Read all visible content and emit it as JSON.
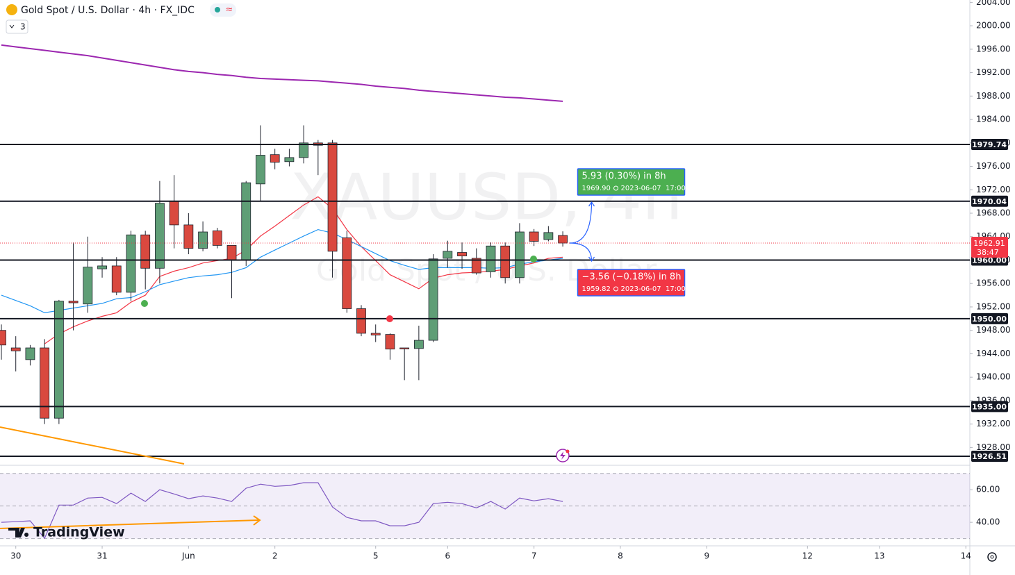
{
  "header": {
    "symbol": "Gold Spot / U.S. Dollar · 4h · FX_IDC",
    "badge": "3"
  },
  "branding": "TradingView",
  "chart_data": {
    "type": "candlestick",
    "watermark": "XAUUSD, 4h",
    "watermark_subtitle": "Gold Spot / U.S. Dollar",
    "categories": [
      null,
      "30",
      null,
      null,
      null,
      null,
      null,
      "31",
      null,
      null,
      null,
      null,
      null,
      "Jun",
      null,
      null,
      null,
      null,
      null,
      "2",
      null,
      null,
      null,
      null,
      null,
      null,
      "5",
      null,
      null,
      null,
      null,
      "6",
      null,
      null,
      null,
      null,
      null,
      "7",
      null,
      null,
      null,
      null,
      null,
      "8",
      null,
      null,
      null,
      null,
      null,
      "9",
      null,
      null,
      null,
      null,
      null,
      null,
      "12",
      null,
      null,
      null,
      null,
      "13",
      null,
      null,
      null,
      null,
      null,
      "14"
    ],
    "open": [
      1948,
      1945,
      1943,
      1945,
      1933,
      1953,
      1952.5,
      1958.5,
      1959,
      1954.5,
      1964.3,
      1958.6,
      1970,
      1966,
      1962,
      1965,
      1962.5,
      1960,
      1973,
      1978,
      1976.8,
      1977.5,
      1980,
      1980,
      1963.8,
      1951.7,
      1947.5,
      1947.3,
      1945,
      1944.9,
      1946.3,
      1960.3,
      1961.3,
      1960.3,
      1958,
      1962.4,
      1957,
      1964.8,
      1963.5,
      1964.2,
      null,
      null,
      null,
      null,
      null,
      null,
      null,
      null,
      null,
      null,
      null,
      null,
      null,
      null,
      null,
      null,
      null,
      null,
      null,
      null,
      null,
      null,
      null,
      null,
      null,
      null,
      null,
      null
    ],
    "high": [
      1949,
      1947,
      1945.5,
      1946.5,
      1953.2,
      1963,
      1964,
      1960.5,
      1960.5,
      1965,
      1965,
      1973.5,
      1974.5,
      1968,
      1966.6,
      1965.5,
      1962.5,
      1973.5,
      1983,
      1979,
      1979,
      1983,
      1980.5,
      1980.5,
      1965,
      1952.3,
      1949,
      1947.5,
      1945,
      1948.8,
      1961,
      1963.3,
      1963,
      1962,
      1963,
      1963,
      1966.3,
      1965.3,
      1965.8,
      1964.9,
      null,
      null,
      null,
      null,
      null,
      null,
      null,
      null,
      null,
      null,
      null,
      null,
      null,
      null,
      null,
      null,
      null,
      null,
      null,
      null,
      null,
      null,
      null,
      null,
      null,
      null,
      null,
      null
    ],
    "low": [
      1943,
      1941,
      1942,
      1932,
      1932,
      1948,
      1951,
      1957,
      1954,
      1953,
      1955,
      1956,
      1962,
      1961,
      1961.5,
      1962,
      1953.5,
      1959,
      1970,
      1975.5,
      1976,
      1976.5,
      1974.5,
      1957,
      1951,
      1947,
      1946,
      1943,
      1939.5,
      1939.5,
      1946,
      1958.7,
      1958.5,
      1957.5,
      1957,
      1956,
      1956,
      1962.4,
      1963.2,
      1962.3,
      null,
      null,
      null,
      null,
      null,
      null,
      null,
      null,
      null,
      null,
      null,
      null,
      null,
      null,
      null,
      null,
      null,
      null,
      null,
      null,
      null,
      null,
      null,
      null,
      null,
      null,
      null,
      null
    ],
    "close": [
      1945.5,
      1944.5,
      1945,
      1933,
      1953,
      1952.7,
      1958.8,
      1959,
      1954.5,
      1964.3,
      1958.6,
      1969.7,
      1966,
      1962,
      1964.8,
      1962.5,
      1960,
      1973.2,
      1977.9,
      1976.7,
      1977.5,
      1980,
      1979.6,
      1961.5,
      1951.7,
      1947.5,
      1947.2,
      1944.8,
      1944.9,
      1946.3,
      1960.2,
      1961.5,
      1960.7,
      1957.8,
      1962.4,
      1957,
      1964.8,
      1963.2,
      1964.7,
      1962.9,
      null,
      null,
      null,
      null,
      null,
      null,
      null,
      null,
      null,
      null,
      null,
      null,
      null,
      null,
      null,
      null,
      null,
      null,
      null,
      null,
      null,
      null,
      null,
      null,
      null,
      null,
      null,
      null
    ],
    "up_color": "#5f9e76",
    "down_color": "#d9493f",
    "lines": [
      {
        "color": "#9c27b0",
        "values": [
          1996.7,
          1996.4,
          1996.1,
          1995.8,
          1995.5,
          1995.2,
          1994.9,
          1994.5,
          1994.1,
          1993.7,
          1993.3,
          1992.9,
          1992.5,
          1992.2,
          1992.0,
          1991.7,
          1991.5,
          1991.2,
          1991.0,
          1990.9,
          1990.8,
          1990.7,
          1990.6,
          1990.4,
          1990.2,
          1990.0,
          1989.7,
          1989.5,
          1989.3,
          1989.0,
          1988.8,
          1988.6,
          1988.4,
          1988.2,
          1988.0,
          1987.8,
          1987.7,
          1987.5,
          1987.3,
          1987.1,
          null,
          null,
          null,
          null,
          null,
          null,
          null,
          null,
          null,
          null,
          null,
          null,
          null,
          null,
          null,
          null,
          null,
          null,
          null,
          null,
          null,
          null,
          null,
          null,
          null,
          null,
          null,
          null
        ]
      },
      {
        "color": "#f23645",
        "values": [
          null,
          null,
          null,
          1945.7,
          1947.4,
          1948.6,
          1949.6,
          1950.4,
          1951.0,
          1952.8,
          1954.0,
          1957.2,
          1958.1,
          1958.7,
          1959.5,
          1959.9,
          1960.3,
          1961.7,
          1964.1,
          1965.8,
          1967.6,
          1969.4,
          1970.8,
          1968.8,
          1965.2,
          1962.3,
          1959.9,
          1957.5,
          1956.3,
          1955.1,
          1956.9,
          1957.5,
          1957.8,
          1957.9,
          1958.1,
          1958.4,
          1959.0,
          1959.5,
          1960.3,
          1960.5,
          null,
          null,
          null,
          null,
          null,
          null,
          null,
          null,
          null,
          null,
          null,
          null,
          null,
          null,
          null,
          null,
          null,
          null,
          null,
          null,
          null,
          null,
          null,
          null,
          null,
          null,
          null,
          null
        ]
      },
      {
        "color": "#2196f3",
        "values": [
          1954.0,
          1953.1,
          1952.2,
          1951.0,
          1951.4,
          1951.8,
          1952.2,
          1952.6,
          1953.4,
          1953.6,
          1954.6,
          1955.8,
          1956.4,
          1957.0,
          1957.3,
          1957.5,
          1957.9,
          1958.7,
          1960.5,
          1961.7,
          1962.9,
          1964.1,
          1965.2,
          1964.6,
          1963.5,
          1962.3,
          1961.1,
          1959.9,
          1959.1,
          1958.4,
          1958.7,
          1958.7,
          1958.7,
          1958.7,
          1958.6,
          1958.7,
          1959.3,
          1959.7,
          1960.0,
          1960.3,
          null,
          null,
          null,
          null,
          null,
          null,
          null,
          null,
          null,
          null,
          null,
          null,
          null,
          null,
          null,
          null,
          null,
          null,
          null,
          null,
          null,
          null,
          null,
          null,
          null,
          null,
          null,
          null
        ]
      }
    ],
    "ylim": [
      1925.2,
      2004.4
    ],
    "yticks": [
      {
        "value": 1928,
        "label": "1928.00"
      },
      {
        "value": 1932,
        "label": "1932.00"
      },
      {
        "value": 1936,
        "label": "1936.00"
      },
      {
        "value": 1940,
        "label": "1940.00"
      },
      {
        "value": 1944,
        "label": "1944.00"
      },
      {
        "value": 1948,
        "label": "1948.00"
      },
      {
        "value": 1952,
        "label": "1952.00"
      },
      {
        "value": 1956,
        "label": "1956.00"
      },
      {
        "value": 1960,
        "label": "1960.00"
      },
      {
        "value": 1964,
        "label": "1964.00"
      },
      {
        "value": 1968,
        "label": "1968.00"
      },
      {
        "value": 1972,
        "label": "1972.00"
      },
      {
        "value": 1976,
        "label": "1976.00"
      },
      {
        "value": 1980,
        "label": "1980.00"
      },
      {
        "value": 1984,
        "label": "1984.00"
      },
      {
        "value": 1988,
        "label": "1988.00"
      },
      {
        "value": 1992,
        "label": "1992.00"
      },
      {
        "value": 1996,
        "label": "1996.00"
      },
      {
        "value": 2000,
        "label": "2000.00"
      },
      {
        "value": 2004,
        "label": "2004.00"
      }
    ],
    "levels": [
      {
        "value": 1979.74,
        "label": "1979.74"
      },
      {
        "value": 1970.04,
        "label": "1970.04"
      },
      {
        "value": 1960,
        "label": "1960.00"
      },
      {
        "value": 1950,
        "label": "1950.00"
      },
      {
        "value": 1935,
        "label": "1935.00"
      },
      {
        "value": 1926.51,
        "label": "1926.51"
      }
    ],
    "last_price": {
      "value": 1962.91,
      "label": "1962.91",
      "countdown": "38:47",
      "color": "#f23645"
    },
    "projections": [
      {
        "change": "5.93 (0.30%) in 8h",
        "target": {
          "value": 1969.9,
          "label": "1969.90"
        },
        "time": "2023-06-07  17:00",
        "color": "#4caf50"
      },
      {
        "change": "−3.56 (−0.18%) in 8h",
        "target": {
          "value": 1959.82,
          "label": "1959.82"
        },
        "time": "2023-06-07  17:00",
        "color": "#f23645"
      }
    ],
    "rsi": {
      "type": "line",
      "color": "#7e57c2",
      "values": [
        40.0,
        40.4,
        40.9,
        30.2,
        50.6,
        50.6,
        54.9,
        55.3,
        51.5,
        57.9,
        52.8,
        60.0,
        57.4,
        54.5,
        56.2,
        54.9,
        52.8,
        60.9,
        63.4,
        62.1,
        62.6,
        64.3,
        64.3,
        49.4,
        43.0,
        40.9,
        40.9,
        37.9,
        37.9,
        40.0,
        51.5,
        52.3,
        51.5,
        48.9,
        52.8,
        48.1,
        54.9,
        53.2,
        54.5,
        52.8,
        null,
        null,
        null,
        null,
        null,
        null,
        null,
        null,
        null,
        null,
        null,
        null,
        null,
        null,
        null,
        null,
        null,
        null,
        null,
        null,
        null,
        null,
        null,
        null,
        null,
        null,
        null,
        null
      ],
      "ylim": [
        26,
        75
      ],
      "yticks": [
        {
          "value": 60,
          "label": "60.00"
        },
        {
          "value": 40,
          "label": "40.00"
        }
      ],
      "bands": [
        70,
        50,
        30
      ]
    }
  }
}
